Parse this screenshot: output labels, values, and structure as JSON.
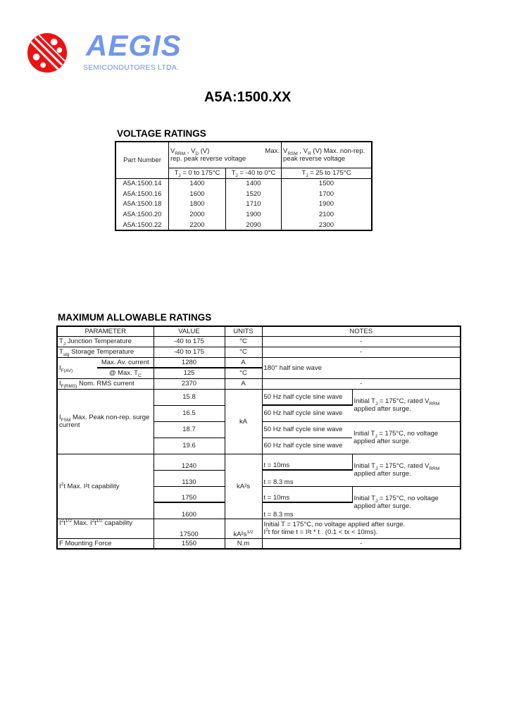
{
  "header": {
    "brand": "AEGIS",
    "brand_sub": "SEMICONDUTORES LTDA.",
    "title": "A5A:1500.XX",
    "logo_color": "#ee1111",
    "brand_color": "#6f96f0"
  },
  "voltage": {
    "title": "VOLTAGE RATINGS",
    "col_part": "Part Number",
    "col_vrrm_a": "V",
    "col_vrrm_sub": "RRM",
    "col_vrrm_b": " , V",
    "col_vrrm_sub2": "D",
    "col_vrrm_c": " (V)",
    "col_vrrm_max": "Max.",
    "col_vrrm_desc": "rep. peak reverse voltage",
    "col_vrsm_a": "V",
    "col_vrsm_sub": "RSM",
    "col_vrsm_b": " , V",
    "col_vrsm_sub2": "R",
    "col_vrsm_c": " (V)   Max. non-rep.",
    "col_vrsm_desc": "peak reverse voltage",
    "cond1": "= 0 to 175°C",
    "cond2": "= -40 to 0°C",
    "cond3": "= 25 to 175°C",
    "rows": [
      [
        "A5A:1500.14",
        "1400",
        "1400",
        "1500"
      ],
      [
        "A5A:1500.16",
        "1600",
        "1520",
        "1700"
      ],
      [
        "A5A:1500.18",
        "1800",
        "1710",
        "1900"
      ],
      [
        "A5A:1500.20",
        "2000",
        "1900",
        "2100"
      ],
      [
        "A5A:1500.22",
        "2200",
        "2090",
        "2300"
      ]
    ]
  },
  "ratings": {
    "title": "MAXIMUM ALLOWABLE RATINGS",
    "headers": {
      "parameter": "PARAMETER",
      "value": "VALUE",
      "units": "UNITS",
      "notes": "NOTES"
    },
    "tj": {
      "label": "Junction Temperature",
      "value": "-40 to 175",
      "units": "°C",
      "notes": "-"
    },
    "tstg": {
      "label": "Storage Temperature",
      "value": "-40 to 175",
      "units": "°C",
      "notes": "-"
    },
    "ifav": {
      "sub1": "Max. Av. current",
      "value1": "1280",
      "units1": "A",
      "sub2": "@ Max. T",
      "value2": "125",
      "units2": "°C",
      "notes": "180° half sine wave"
    },
    "irms": {
      "label": "Nom. RMS current",
      "value": "2370",
      "units": "A",
      "notes": "-"
    },
    "ifsm": {
      "label": "Max. Peak non-rep. surge current",
      "values": [
        "15.8",
        "16.5",
        "18.7",
        "19.6"
      ],
      "units": "kA",
      "conditions": [
        "50 Hz half cycle sine wave",
        "60 Hz half cycle sine wave",
        "50 Hz half cycle sine wave",
        "60 Hz half cycle sine wave"
      ],
      "note_a1": "Initial T",
      "note_a2": " = 175°C, rated V",
      "note_a3": "applied after surge.",
      "note_b1": "Initial T",
      "note_b2": " = 175°C, no voltage",
      "note_b3": "applied after surge."
    },
    "i2t": {
      "label": "Max. I²t capability",
      "values": [
        "1240",
        "1130",
        "1750",
        "1600"
      ],
      "units": "kA²s",
      "conditions": [
        "t = 10ms",
        "t = 8.3 ms",
        "t = 10ms",
        "t = 8.3 ms"
      ]
    },
    "i2rt": {
      "label": "capability",
      "value": "17500",
      "units": "kA²s",
      "note1": "Initial T  = 175°C, no voltage applied after surge.",
      "note2": "t for time t  = I²t     * t     . (0.1 < tx < 10ms)."
    },
    "force": {
      "label": "F Mounting Force",
      "value": "1550",
      "units": "N.m",
      "notes": "-"
    }
  }
}
